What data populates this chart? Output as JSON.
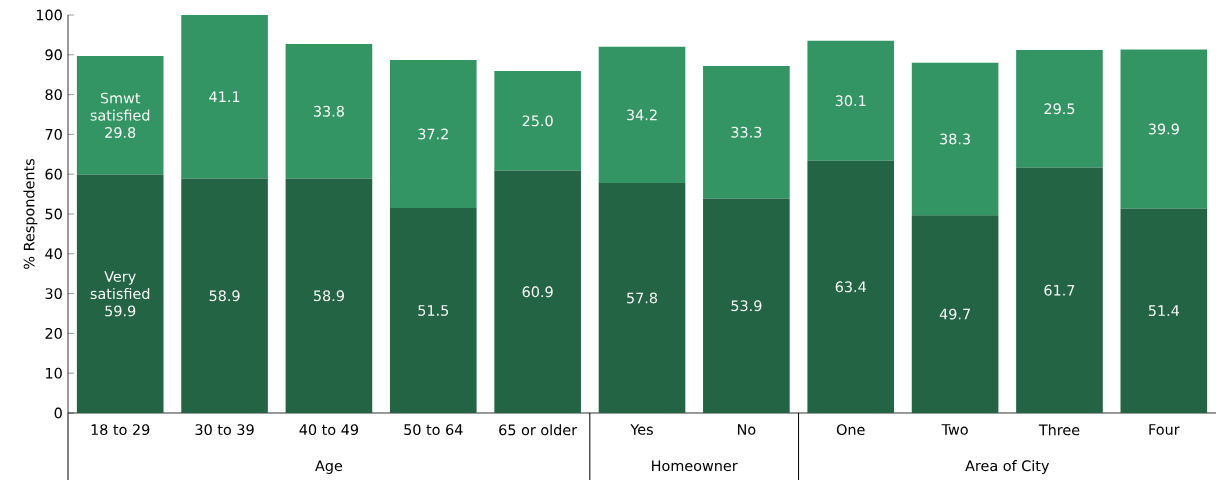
{
  "chart_data": {
    "type": "bar",
    "stacked": true,
    "ylabel": "% Respondents",
    "categories": [
      "18 to 29",
      "30 to 39",
      "40 to 49",
      "50 to 64",
      "65 or older",
      "Yes",
      "No",
      "One",
      "Two",
      "Three",
      "Four"
    ],
    "series": [
      {
        "name": "Very satisfied",
        "color": "#226443",
        "values": [
          59.9,
          58.9,
          58.9,
          51.5,
          60.9,
          57.8,
          53.9,
          63.4,
          49.7,
          61.7,
          51.4
        ],
        "value_labels": [
          "59.9",
          "58.9",
          "58.9",
          "51.5",
          "60.9",
          "57.8",
          "53.9",
          "63.4",
          "49.7",
          "61.7",
          "51.4"
        ]
      },
      {
        "name": "Smwt satisfied",
        "color": "#339563",
        "values": [
          29.8,
          41.1,
          33.8,
          37.2,
          25.0,
          34.2,
          33.3,
          30.1,
          38.3,
          29.5,
          39.9
        ],
        "value_labels": [
          "29.8",
          "41.1",
          "33.8",
          "37.2",
          "25.0",
          "34.2",
          "33.3",
          "30.1",
          "38.3",
          "29.5",
          "39.9"
        ]
      }
    ],
    "ylim": [
      0,
      100
    ],
    "yticks": [
      0,
      10,
      20,
      30,
      40,
      50,
      60,
      70,
      80,
      90,
      100
    ],
    "legend": false,
    "grid": false,
    "annotations": [
      "Age",
      "Homeowner",
      "Area of City"
    ]
  }
}
